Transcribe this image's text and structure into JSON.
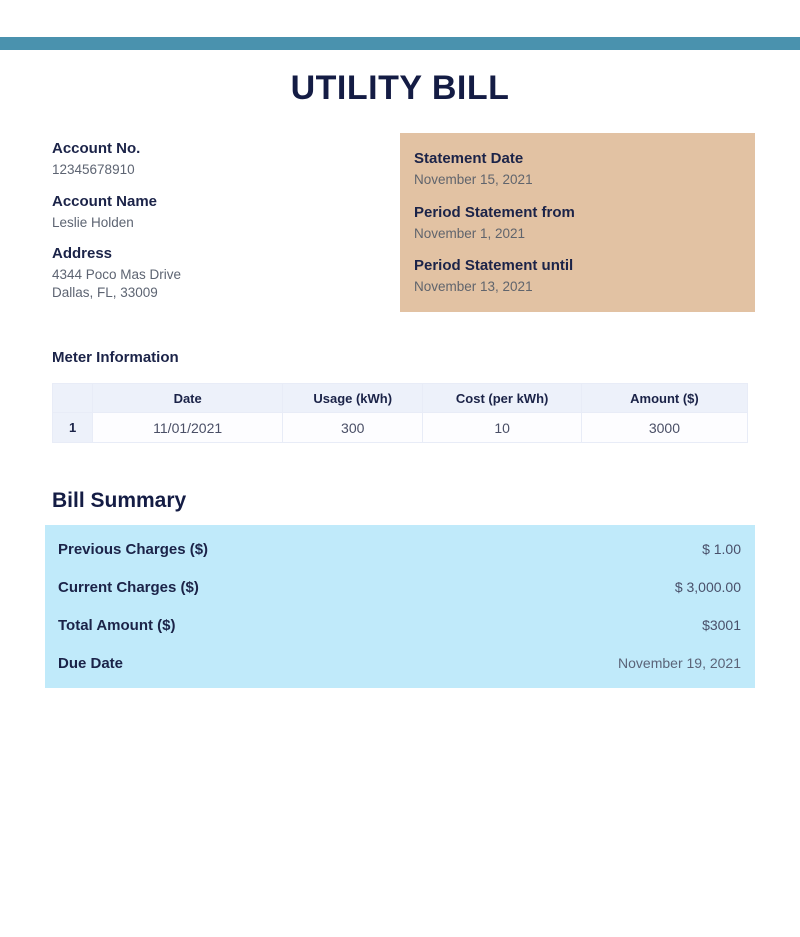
{
  "page": {
    "title": "UTILITY BILL"
  },
  "colors": {
    "stripe_blue": "#4a92ae",
    "heading_navy": "#141c44",
    "statement_box_tan": "#e2c2a3",
    "summary_box_blue": "#c0eafa",
    "table_header_bg": "#edf1fa",
    "muted_value_text": "#5d6472"
  },
  "account": {
    "fields": [
      {
        "label": "Account No.",
        "value": "12345678910"
      },
      {
        "label": "Account Name",
        "value": "Leslie Holden"
      },
      {
        "label": "Address",
        "lines": [
          "4344 Poco Mas Drive",
          "Dallas, FL, 33009"
        ]
      }
    ]
  },
  "statement": {
    "fields": [
      {
        "label": "Statement Date",
        "value": "November 15, 2021"
      },
      {
        "label": "Period Statement from",
        "value": "November 1, 2021"
      },
      {
        "label": "Period Statement until",
        "value": "November 13, 2021"
      }
    ]
  },
  "meter": {
    "heading": "Meter Information",
    "columns": [
      "",
      "Date",
      "Usage (kWh)",
      "Cost (per kWh)",
      "Amount ($)"
    ],
    "rows": [
      {
        "cells": [
          "1",
          "11/01/2021",
          "300",
          "10",
          "3000"
        ]
      }
    ]
  },
  "summary": {
    "heading": "Bill Summary",
    "rows": [
      {
        "label": "Previous Charges ($)",
        "value": "$ 1.00"
      },
      {
        "label": "Current Charges ($)",
        "value": "$ 3,000.00"
      },
      {
        "label": "Total Amount ($)",
        "value": "$3001"
      },
      {
        "label": "Due Date",
        "value": "November 19, 2021"
      }
    ]
  }
}
